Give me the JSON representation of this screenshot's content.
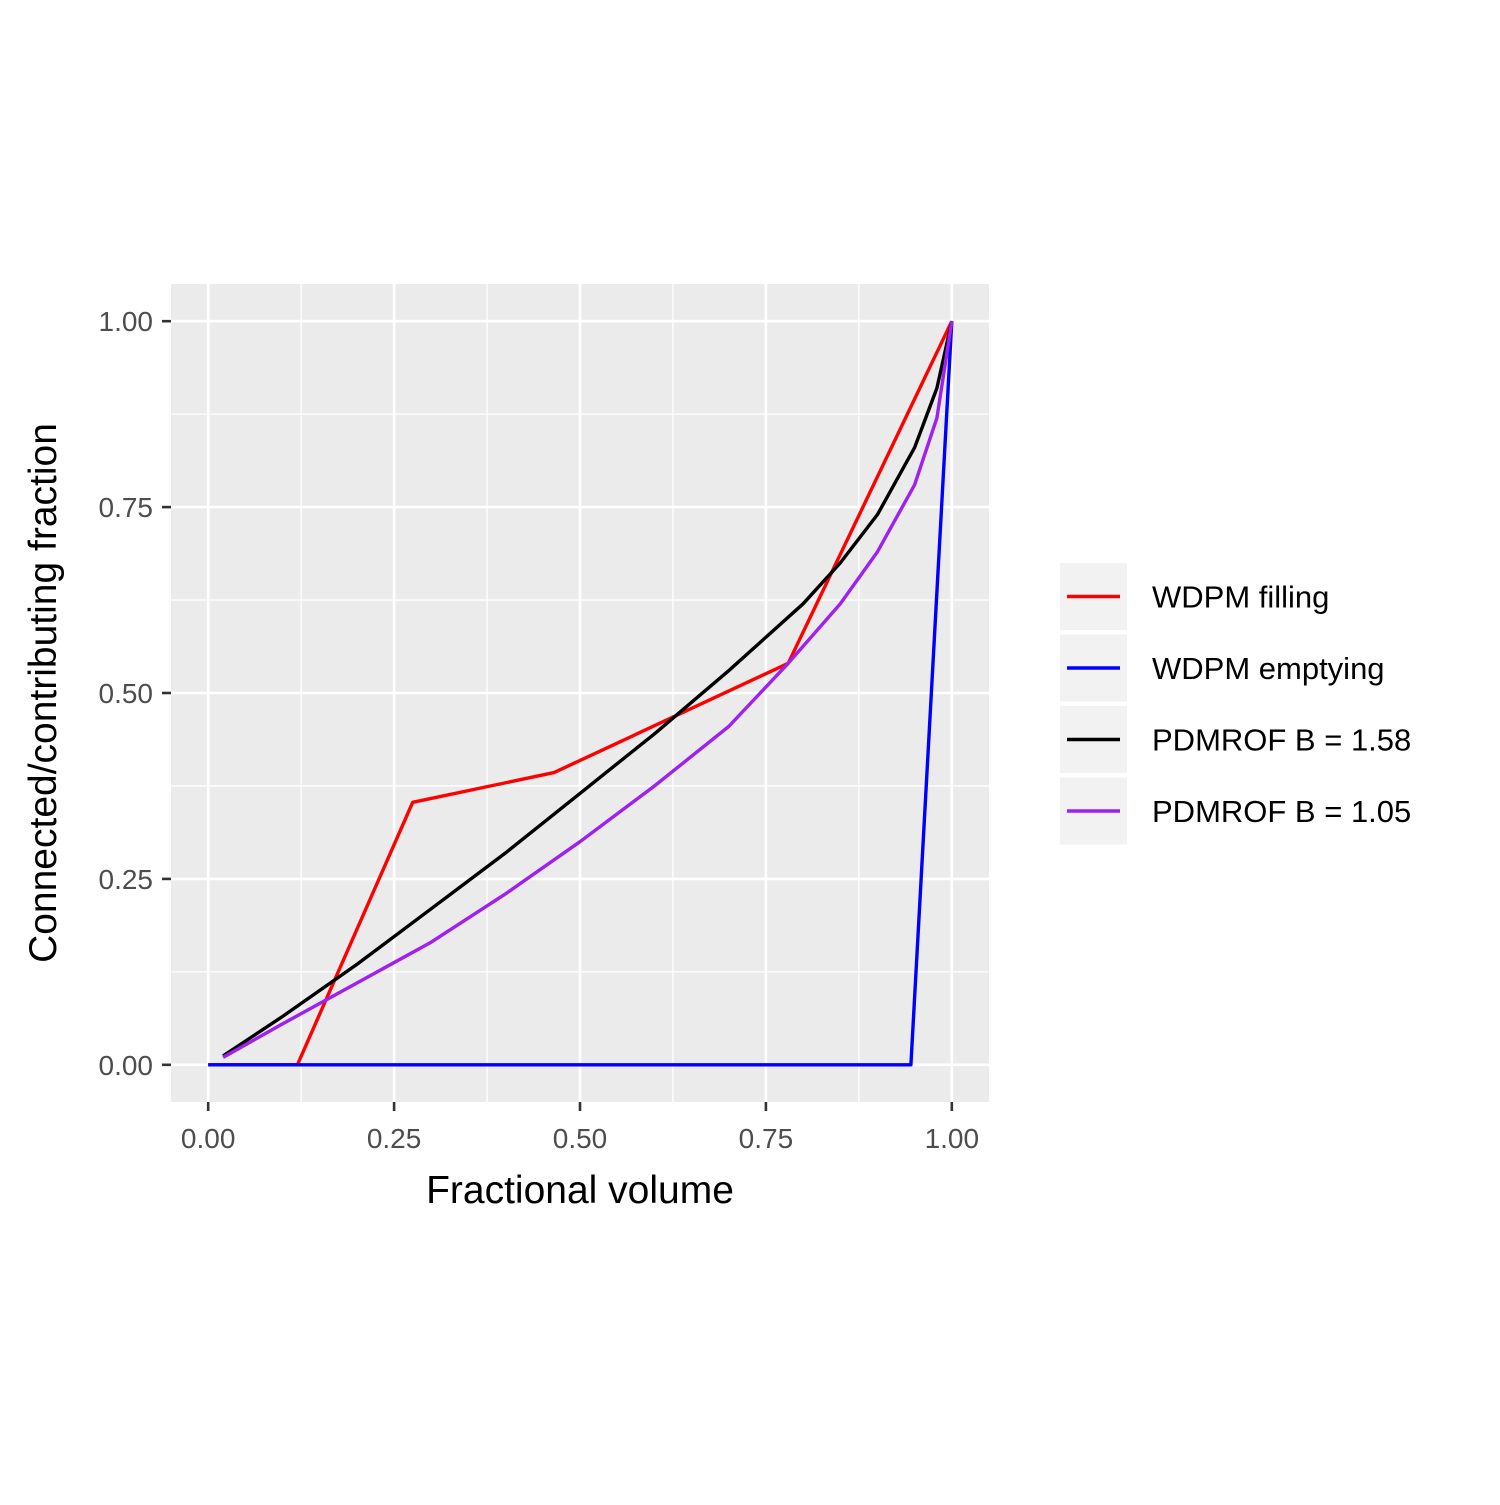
{
  "chart_data": {
    "type": "line",
    "title": "",
    "xlabel": "Fractional volume",
    "ylabel": "Connected/contributing fraction",
    "xlim": [
      -0.05,
      1.05
    ],
    "ylim": [
      -0.05,
      1.05
    ],
    "x_ticks": [
      0,
      0.25,
      0.5,
      0.75,
      1
    ],
    "x_tick_labels": [
      "0.00",
      "0.25",
      "0.50",
      "0.75",
      "1.00"
    ],
    "y_ticks": [
      0,
      0.25,
      0.5,
      0.75,
      1
    ],
    "y_tick_labels": [
      "0.00",
      "0.25",
      "0.50",
      "0.75",
      "1.00"
    ],
    "grid": true,
    "legend_position": "right",
    "series": [
      {
        "name": "WDPM filling",
        "color": "#ff0000",
        "points": [
          [
            0.0,
            0.0
          ],
          [
            0.12,
            0.0
          ],
          [
            0.275,
            0.353
          ],
          [
            0.465,
            0.393
          ],
          [
            0.78,
            0.54
          ],
          [
            1.0,
            1.0
          ]
        ]
      },
      {
        "name": "WDPM emptying",
        "color": "#0000ff",
        "points": [
          [
            0.0,
            0.0
          ],
          [
            0.945,
            0.0
          ],
          [
            1.0,
            1.0
          ]
        ]
      },
      {
        "name": "PDMROF B = 1.58",
        "color": "#000000",
        "points": [
          [
            0.02,
            0.012
          ],
          [
            0.1,
            0.065
          ],
          [
            0.2,
            0.135
          ],
          [
            0.3,
            0.21
          ],
          [
            0.4,
            0.285
          ],
          [
            0.5,
            0.365
          ],
          [
            0.6,
            0.445
          ],
          [
            0.7,
            0.53
          ],
          [
            0.8,
            0.62
          ],
          [
            0.85,
            0.675
          ],
          [
            0.9,
            0.74
          ],
          [
            0.95,
            0.83
          ],
          [
            0.98,
            0.91
          ],
          [
            1.0,
            1.0
          ]
        ]
      },
      {
        "name": "PDMROF B = 1.05",
        "color": "#a020f0",
        "points": [
          [
            0.02,
            0.01
          ],
          [
            0.1,
            0.055
          ],
          [
            0.2,
            0.11
          ],
          [
            0.3,
            0.165
          ],
          [
            0.4,
            0.23
          ],
          [
            0.5,
            0.3
          ],
          [
            0.6,
            0.375
          ],
          [
            0.7,
            0.455
          ],
          [
            0.78,
            0.54
          ],
          [
            0.85,
            0.62
          ],
          [
            0.9,
            0.69
          ],
          [
            0.95,
            0.78
          ],
          [
            0.98,
            0.87
          ],
          [
            1.0,
            1.0
          ]
        ]
      }
    ]
  }
}
